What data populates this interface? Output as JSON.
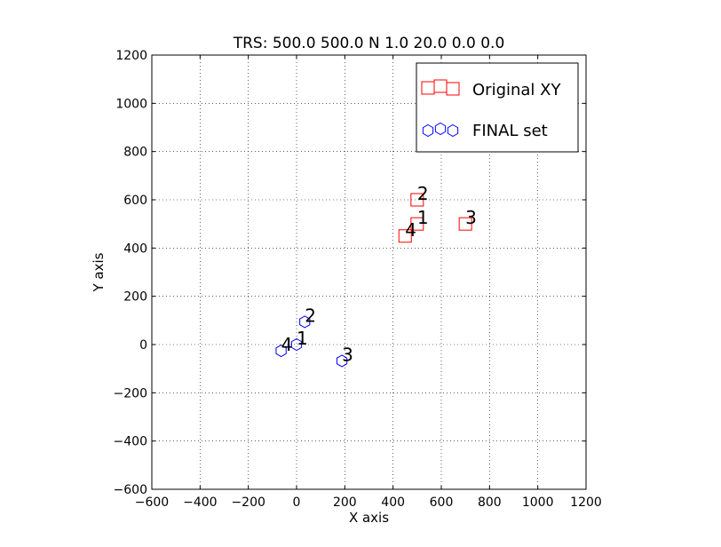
{
  "chart_data": {
    "type": "scatter",
    "title": "TRS: 500.0 500.0 N 1.0 20.0 0.0 0.0",
    "xlabel": "X axis",
    "ylabel": "Y axis",
    "xlim": [
      -600,
      1200
    ],
    "ylim": [
      -600,
      1200
    ],
    "xticks": [
      -600,
      -400,
      -200,
      0,
      200,
      400,
      600,
      800,
      1000,
      1200
    ],
    "yticks": [
      -600,
      -400,
      -200,
      0,
      200,
      400,
      600,
      800,
      1000,
      1200
    ],
    "grid": true,
    "legend_position": "upper right",
    "series": [
      {
        "name": "Original XY",
        "marker": "square",
        "color": "#ff0000",
        "points": [
          {
            "label": "1",
            "x": 500,
            "y": 500
          },
          {
            "label": "2",
            "x": 500,
            "y": 600
          },
          {
            "label": "3",
            "x": 700,
            "y": 500
          },
          {
            "label": "4",
            "x": 450,
            "y": 450
          }
        ]
      },
      {
        "name": "FINAL set",
        "marker": "hexagon",
        "color": "#0000ff",
        "points": [
          {
            "label": "1",
            "x": 0,
            "y": 0
          },
          {
            "label": "2",
            "x": 34,
            "y": 94
          },
          {
            "label": "3",
            "x": 188,
            "y": -68
          },
          {
            "label": "4",
            "x": -64,
            "y": -26
          }
        ]
      }
    ]
  }
}
